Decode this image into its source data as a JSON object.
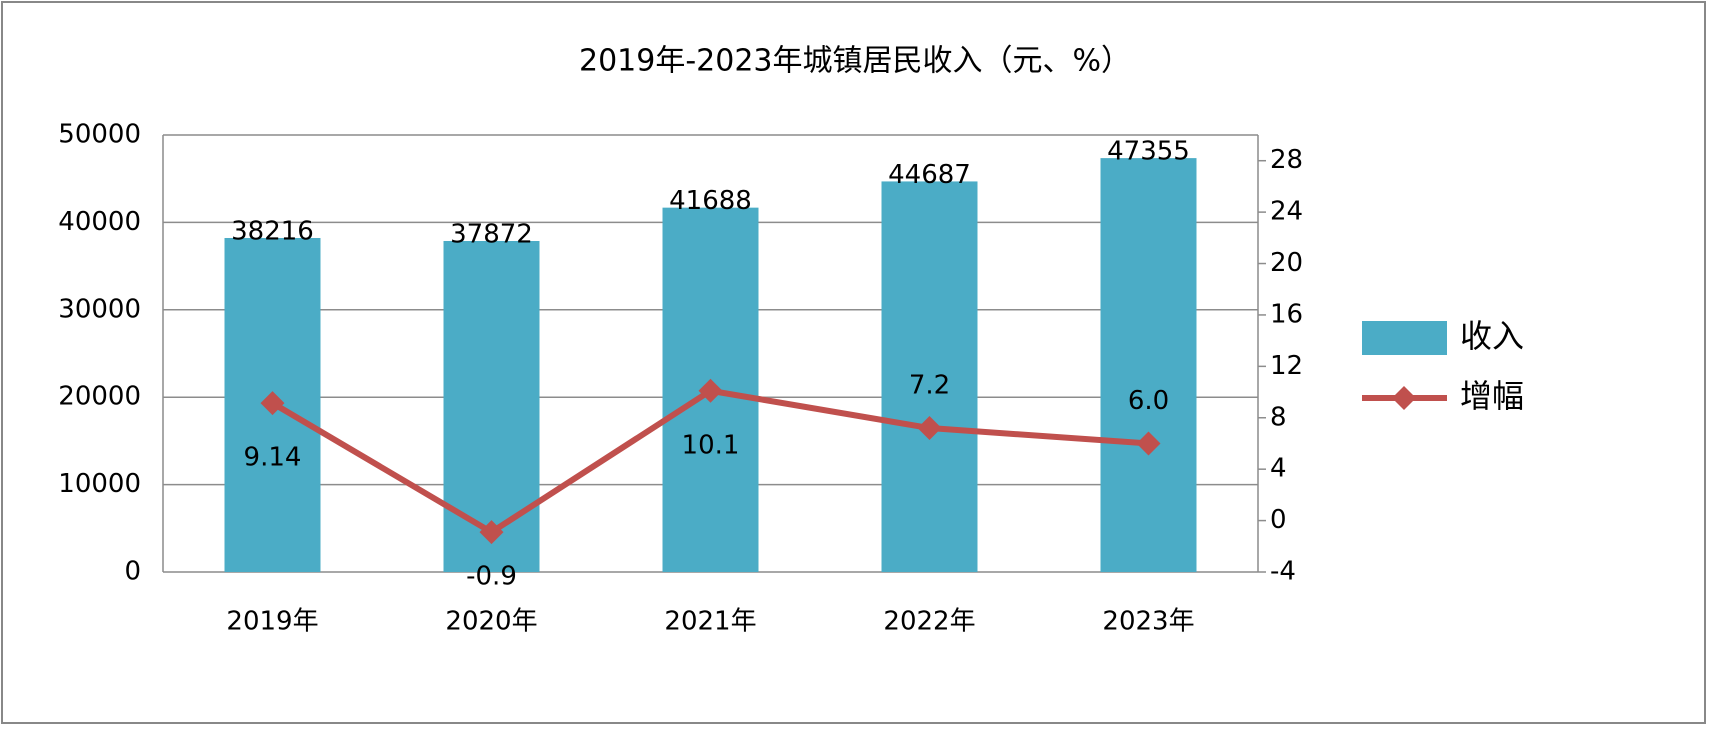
{
  "chart_data": {
    "type": "bar",
    "title": "2019年-2023年城镇居民收入（元、%）",
    "categories": [
      "2019年",
      "2020年",
      "2021年",
      "2022年",
      "2023年"
    ],
    "series": [
      {
        "name": "收入",
        "type": "bar",
        "color": "#4bacc6",
        "values": [
          38216,
          37872,
          41688,
          44687,
          47355
        ]
      },
      {
        "name": "增幅",
        "type": "line",
        "axis": "y2",
        "color": "#c0504d",
        "values": [
          9.14,
          -0.9,
          10.1,
          7.2,
          6.0
        ],
        "value_labels": [
          "9.14",
          "-0.9",
          "10.1",
          "7.2",
          "6.0"
        ]
      }
    ],
    "ylim": [
      0,
      50000
    ],
    "yticks": [
      0,
      10000,
      20000,
      30000,
      40000,
      50000
    ],
    "y2lim": [
      -4,
      30
    ],
    "y2ticks": [
      -4,
      0,
      4,
      8,
      12,
      16,
      20,
      24,
      28
    ],
    "grid": true,
    "legend": "right"
  }
}
